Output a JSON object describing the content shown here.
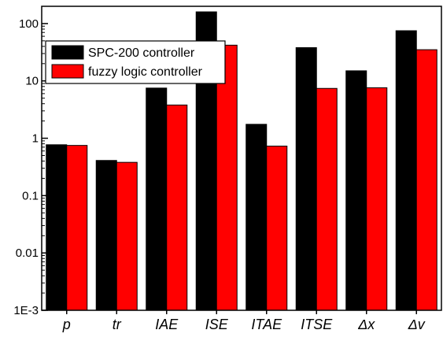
{
  "chart_data": {
    "type": "bar",
    "yscale": "log",
    "ylim": [
      0.001,
      200
    ],
    "yticks": [
      {
        "value": 0.001,
        "label": "1E-3"
      },
      {
        "value": 0.01,
        "label": "0.01"
      },
      {
        "value": 0.1,
        "label": "0.1"
      },
      {
        "value": 1,
        "label": "1"
      },
      {
        "value": 10,
        "label": "10"
      },
      {
        "value": 100,
        "label": "100"
      }
    ],
    "categories": [
      "p",
      "tr",
      "IAE",
      "ISE",
      "ITAE",
      "ITSE",
      "Δx",
      "Δv"
    ],
    "series": [
      {
        "name": "SPC-200 controller",
        "color": "#000000",
        "values": [
          0.77,
          0.41,
          7.5,
          160,
          1.75,
          38,
          15,
          75
        ]
      },
      {
        "name": "fuzzy logic controller",
        "color": "#ff0000",
        "values": [
          0.75,
          0.38,
          3.8,
          42,
          0.73,
          7.4,
          7.6,
          35
        ]
      }
    ],
    "legend": "top-left",
    "grid": false,
    "title": "",
    "xlabel": "",
    "ylabel": ""
  }
}
